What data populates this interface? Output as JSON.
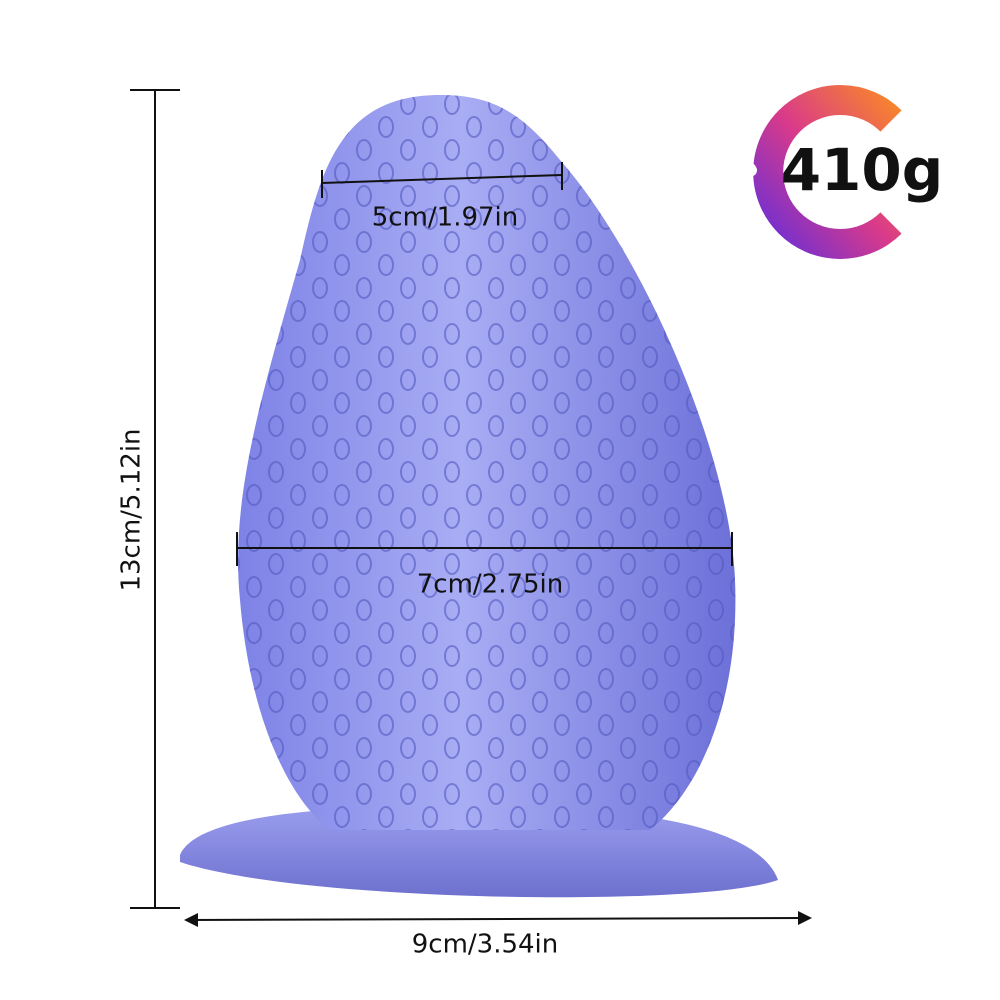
{
  "dimensions": {
    "top_width": "5cm/1.97in",
    "middle_width": "7cm/2.75in",
    "base_width": "9cm/3.54in",
    "height": "13cm/5.12in"
  },
  "weight": "410g"
}
